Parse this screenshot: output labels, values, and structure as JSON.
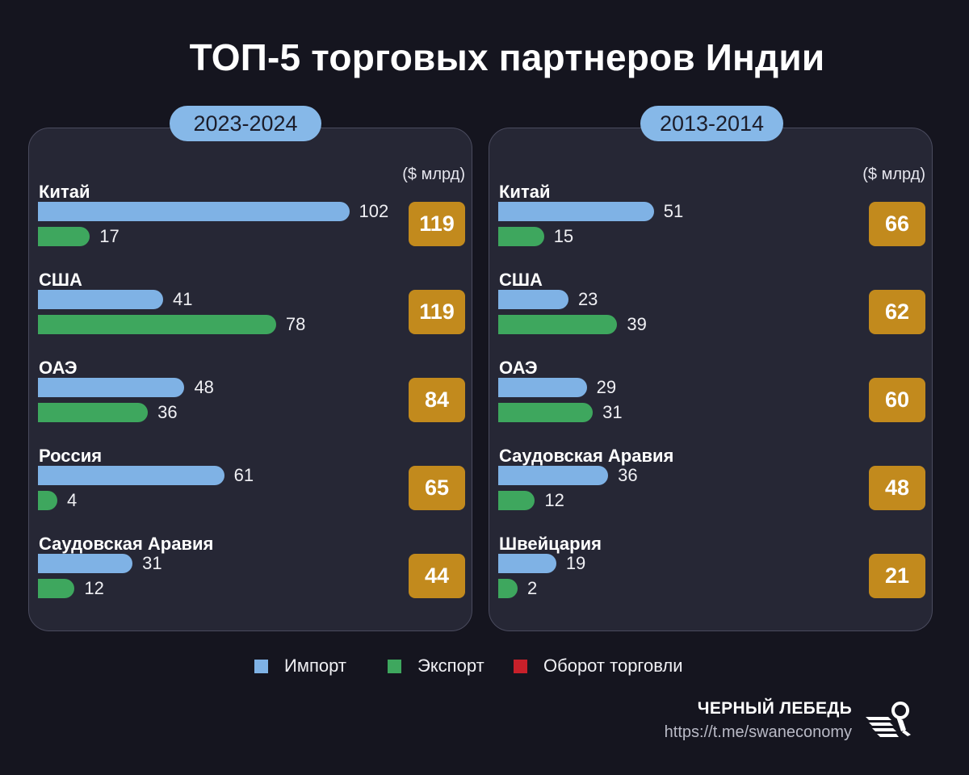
{
  "title": "ТОП-5 торговых партнеров Индии",
  "unit": "($ млрд)",
  "chart_data": [
    {
      "type": "bar",
      "period": "2023-2024",
      "categories": [
        "Китай",
        "США",
        "ОАЭ",
        "Россия",
        "Саудовская Аравия"
      ],
      "series": [
        {
          "name": "Импорт",
          "values": [
            102,
            41,
            48,
            61,
            31
          ]
        },
        {
          "name": "Экспорт",
          "values": [
            17,
            78,
            36,
            4,
            12
          ]
        },
        {
          "name": "Оборот торговли",
          "values": [
            119,
            119,
            84,
            65,
            44
          ]
        }
      ]
    },
    {
      "type": "bar",
      "period": "2013-2014",
      "categories": [
        "Китай",
        "США",
        "ОАЭ",
        "Саудовская Аравия",
        "Швейцария"
      ],
      "series": [
        {
          "name": "Импорт",
          "values": [
            51,
            23,
            29,
            36,
            19
          ]
        },
        {
          "name": "Экспорт",
          "values": [
            15,
            39,
            31,
            12,
            2
          ]
        },
        {
          "name": "Оборот торговли",
          "values": [
            66,
            62,
            60,
            48,
            21
          ]
        }
      ]
    }
  ],
  "legend": [
    {
      "label": "Импорт",
      "color": "#7fb2e5"
    },
    {
      "label": "Экспорт",
      "color": "#3ea75e"
    },
    {
      "label": "Оборот торговли",
      "color": "#c8202a"
    }
  ],
  "colors": {
    "import": "#7fb2e5",
    "export": "#3ea75e",
    "total_badge": "#c28a1d",
    "period_pill": "#86b8e8"
  },
  "brand": {
    "name": "ЧЕРНЫЙ ЛЕБЕДЬ",
    "url": "https://t.me/swaneconomy",
    "logo_icon": "swan-logo-icon"
  }
}
